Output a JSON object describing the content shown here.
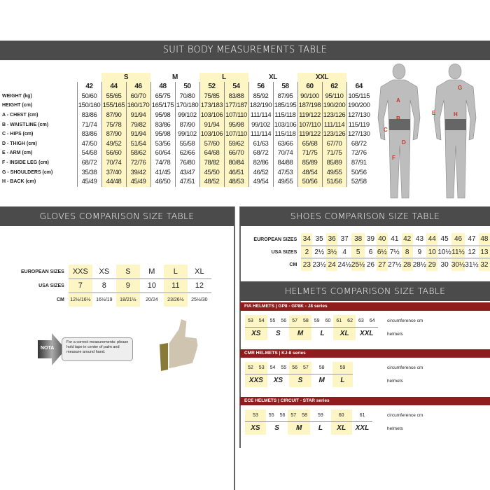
{
  "suit": {
    "title": "SUIT BODY MEASUREMENTS TABLE",
    "groups": [
      {
        "label": "",
        "span": 1,
        "hl": false
      },
      {
        "label": "S",
        "span": 2,
        "hl": true
      },
      {
        "label": "M",
        "span": 2,
        "hl": false
      },
      {
        "label": "L",
        "span": 2,
        "hl": true
      },
      {
        "label": "XL",
        "span": 2,
        "hl": false
      },
      {
        "label": "XXL",
        "span": 2,
        "hl": true
      },
      {
        "label": "",
        "span": 1,
        "hl": false
      }
    ],
    "sizes": [
      "42",
      "44",
      "46",
      "48",
      "50",
      "52",
      "54",
      "56",
      "58",
      "60",
      "62",
      "64"
    ],
    "highlight": [
      false,
      true,
      true,
      false,
      false,
      true,
      true,
      false,
      false,
      true,
      true,
      false
    ],
    "rows": [
      {
        "label": "WEIGHT (kg)",
        "values": [
          "50/60",
          "55/65",
          "60/70",
          "65/75",
          "70/80",
          "75/85",
          "83/88",
          "85/92",
          "87/95",
          "90/100",
          "95/110",
          "105/115"
        ]
      },
      {
        "label": "HEIGHT (cm)",
        "values": [
          "150/160",
          "155/165",
          "160/170",
          "165/175",
          "170/180",
          "173/183",
          "177/187",
          "182/190",
          "185/195",
          "187/198",
          "190/200",
          "190/200"
        ]
      },
      {
        "label": "A - CHEST (cm)",
        "values": [
          "83/86",
          "87/90",
          "91/94",
          "95/98",
          "99/102",
          "103/106",
          "107/110",
          "111/114",
          "115/118",
          "119/122",
          "123/126",
          "127/130"
        ]
      },
      {
        "label": "B - WAISTLINE (cm)",
        "values": [
          "71/74",
          "75/78",
          "79/82",
          "83/86",
          "87/90",
          "91/94",
          "95/98",
          "99/102",
          "103/106",
          "107/110",
          "111/114",
          "115/119"
        ]
      },
      {
        "label": "C - HIPS (cm)",
        "values": [
          "83/86",
          "87/90",
          "91/94",
          "95/98",
          "99/102",
          "103/106",
          "107/110",
          "111/114",
          "115/118",
          "119/122",
          "123/126",
          "127/130"
        ]
      },
      {
        "label": "D - THIGH (cm)",
        "values": [
          "47/50",
          "49/52",
          "51/54",
          "53/56",
          "55/58",
          "57/60",
          "59/62",
          "61/63",
          "63/66",
          "65/68",
          "67/70",
          "68/72"
        ]
      },
      {
        "label": "E - ARM (cm)",
        "values": [
          "54/58",
          "56/60",
          "58/62",
          "60/64",
          "62/66",
          "64/68",
          "66/70",
          "68/72",
          "70/74",
          "71/75",
          "71/75",
          "72/76"
        ]
      },
      {
        "label": "F - INSIDE LEG (cm)",
        "values": [
          "68/72",
          "70/74",
          "72/76",
          "74/78",
          "76/80",
          "78/82",
          "80/84",
          "82/86",
          "84/88",
          "85/89",
          "85/89",
          "87/91"
        ]
      },
      {
        "label": "G - SHOULDERS (cm)",
        "values": [
          "35/38",
          "37/40",
          "39/42",
          "41/45",
          "43/47",
          "45/50",
          "46/51",
          "46/52",
          "47/53",
          "48/54",
          "49/55",
          "50/56"
        ]
      },
      {
        "label": "H - BACK (cm)",
        "values": [
          "45/49",
          "44/48",
          "45/49",
          "46/50",
          "47/51",
          "48/52",
          "48/53",
          "49/54",
          "49/55",
          "50/56",
          "51/56",
          "52/58"
        ]
      }
    ],
    "figure_labels": [
      "A",
      "B",
      "C",
      "D",
      "E",
      "F",
      "G",
      "H"
    ]
  },
  "gloves": {
    "title": "GLOVES COMPARISON SIZE TABLE",
    "rows": [
      {
        "label": "EUROPEAN SIZES",
        "values": [
          "XXS",
          "XS",
          "S",
          "M",
          "L",
          "XL"
        ]
      },
      {
        "label": "USA SIZES",
        "values": [
          "7",
          "8",
          "9",
          "10",
          "11",
          "12"
        ]
      },
      {
        "label": "CM",
        "values": [
          "12½/16½",
          "16½/19",
          "18/21½",
          "20/24",
          "23/26½",
          "25½/30"
        ]
      }
    ],
    "highlight": [
      true,
      false,
      true,
      false,
      true,
      false
    ],
    "nota_label": "NOTA",
    "nota_text": "For a correct measurements: please hold tape in center of palm and measure around hand."
  },
  "shoes": {
    "title": "SHOES COMPARISON SIZE TABLE",
    "rows": [
      {
        "label": "EUROPEAN SIZES",
        "values": [
          "34",
          "35",
          "36",
          "37",
          "38",
          "39",
          "40",
          "41",
          "42",
          "43",
          "44",
          "45",
          "46",
          "47",
          "48"
        ]
      },
      {
        "label": "USA SIZES",
        "values": [
          "2",
          "2½",
          "3½",
          "4",
          "5",
          "6",
          "6½",
          "7½",
          "8",
          "9",
          "10",
          "10½",
          "11½",
          "12",
          "13"
        ]
      },
      {
        "label": "CM",
        "values": [
          "23",
          "23½",
          "24",
          "24½",
          "25½",
          "26",
          "27",
          "27½",
          "28",
          "28½",
          "29",
          "30",
          "30½",
          "31½",
          "32"
        ]
      }
    ]
  },
  "helmets": {
    "title": "HELMETS COMPARISON SIZE TABLE",
    "circ_label": "circumference cm",
    "size_label": "helmets",
    "series": [
      {
        "name": "FIA HELMETS | GP8 - GP8K - J8 series",
        "groups": [
          {
            "size": "XS",
            "circ": [
              "53",
              "54"
            ],
            "hl": true
          },
          {
            "size": "S",
            "circ": [
              "55",
              "56"
            ],
            "hl": false
          },
          {
            "size": "M",
            "circ": [
              "57",
              "58"
            ],
            "hl": true
          },
          {
            "size": "L",
            "circ": [
              "59",
              "60"
            ],
            "hl": false
          },
          {
            "size": "XL",
            "circ": [
              "61",
              "62"
            ],
            "hl": true
          },
          {
            "size": "XXL",
            "circ": [
              "63",
              "64"
            ],
            "hl": false
          }
        ]
      },
      {
        "name": "CMR HELMETS | KJ-8 series",
        "groups": [
          {
            "size": "XXS",
            "circ": [
              "52",
              "53"
            ],
            "hl": true
          },
          {
            "size": "XS",
            "circ": [
              "54",
              "55"
            ],
            "hl": false
          },
          {
            "size": "S",
            "circ": [
              "56",
              "57"
            ],
            "hl": true
          },
          {
            "size": "M",
            "circ": [
              "58"
            ],
            "hl": false
          },
          {
            "size": "L",
            "circ": [
              "59"
            ],
            "hl": true
          }
        ]
      },
      {
        "name": "ECE HELMETS | CIRCUIT - STAR series",
        "groups": [
          {
            "size": "XS",
            "circ": [
              "53"
            ],
            "hl": true
          },
          {
            "size": "S",
            "circ": [
              "55",
              "56"
            ],
            "hl": false
          },
          {
            "size": "M",
            "circ": [
              "57",
              "58"
            ],
            "hl": true
          },
          {
            "size": "L",
            "circ": [
              "59"
            ],
            "hl": false
          },
          {
            "size": "XL",
            "circ": [
              "60"
            ],
            "hl": true
          },
          {
            "size": "XXL",
            "circ": [
              "61"
            ],
            "hl": false
          }
        ]
      }
    ]
  },
  "colors": {
    "header": "#4b4b4b",
    "highlight": "#fdf5c4",
    "helmet_bar": "#8f1d1d"
  }
}
